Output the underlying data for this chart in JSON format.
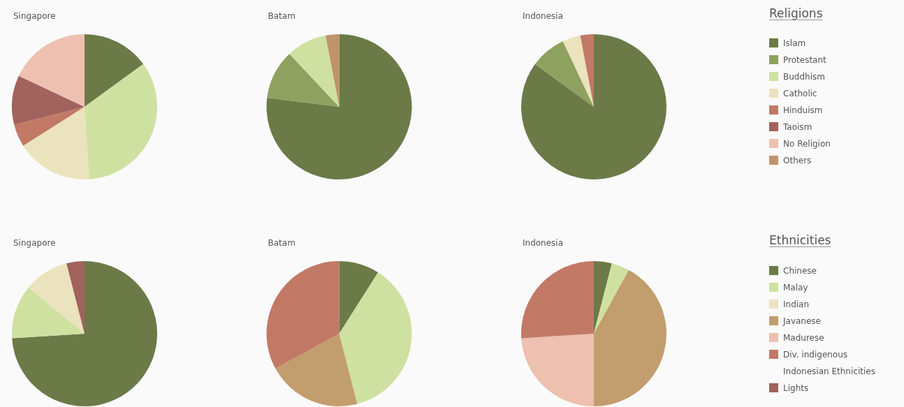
{
  "chart_data": [
    {
      "type": "pie",
      "categories": [
        "Islam",
        "Protestant",
        "Buddhism",
        "Catholic",
        "Hinduism",
        "Taoism",
        "No Religion",
        "Others"
      ],
      "colors": [
        "#6b7a47",
        "#8fa15f",
        "#cfe1a1",
        "#ebe3bd",
        "#c27966",
        "#a2625d",
        "#edc0af",
        "#c1936b"
      ],
      "series": [
        {
          "name": "Singapore",
          "values": [
            15,
            null,
            34,
            17,
            5,
            11,
            18,
            null
          ]
        },
        {
          "name": "Batam",
          "values": [
            77,
            11,
            9,
            null,
            null,
            null,
            null,
            3
          ]
        },
        {
          "name": "Indonesia",
          "values": [
            85,
            8,
            null,
            4,
            3,
            null,
            null,
            null
          ]
        }
      ],
      "legend": "right",
      "legend_title": "Religions"
    },
    {
      "type": "pie",
      "categories": [
        "Chinese",
        "Malay",
        "Indian",
        "Javanese",
        "Madurese",
        "Div. indigenous Indonesian Ethnicities",
        "Lights"
      ],
      "colors": [
        "#6b7a47",
        "#cfe1a1",
        "#ebe3bd",
        "#c29d6d",
        "#edc0af",
        "#c27966",
        "#a2625d"
      ],
      "series": [
        {
          "name": "Singapore",
          "values": [
            74,
            12,
            10,
            null,
            null,
            null,
            4
          ]
        },
        {
          "name": "Batam",
          "values": [
            9,
            37,
            null,
            21,
            null,
            33,
            null
          ]
        },
        {
          "name": "Indonesia",
          "values": [
            4,
            4,
            null,
            42,
            24,
            26,
            null
          ]
        }
      ],
      "legend": "right",
      "legend_title": "Ethnicities"
    }
  ]
}
